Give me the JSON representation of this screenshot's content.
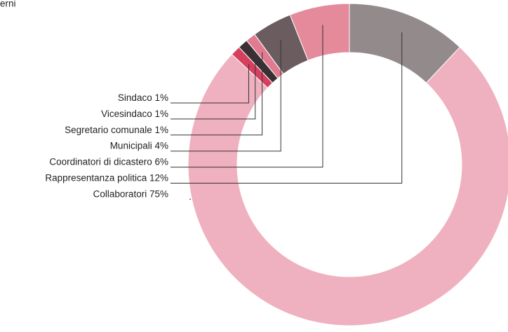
{
  "chart_data": {
    "type": "donut",
    "title": "erni",
    "categories": [
      "Sindaco",
      "Vicesindaco",
      "Segretario comunale",
      "Municipali",
      "Coordinatori di dicastero",
      "Rappresentanza politica",
      "Collaboratori"
    ],
    "values": [
      1,
      1,
      1,
      4,
      6,
      12,
      75
    ],
    "value_labels": [
      "1%",
      "1%",
      "1%",
      "4%",
      "6%",
      "12%",
      "75%"
    ],
    "colors": [
      "#d6405e",
      "#3a3034",
      "#e07b90",
      "#6b5c60",
      "#e48a9b",
      "#938a8c",
      "#efb1bf"
    ]
  }
}
